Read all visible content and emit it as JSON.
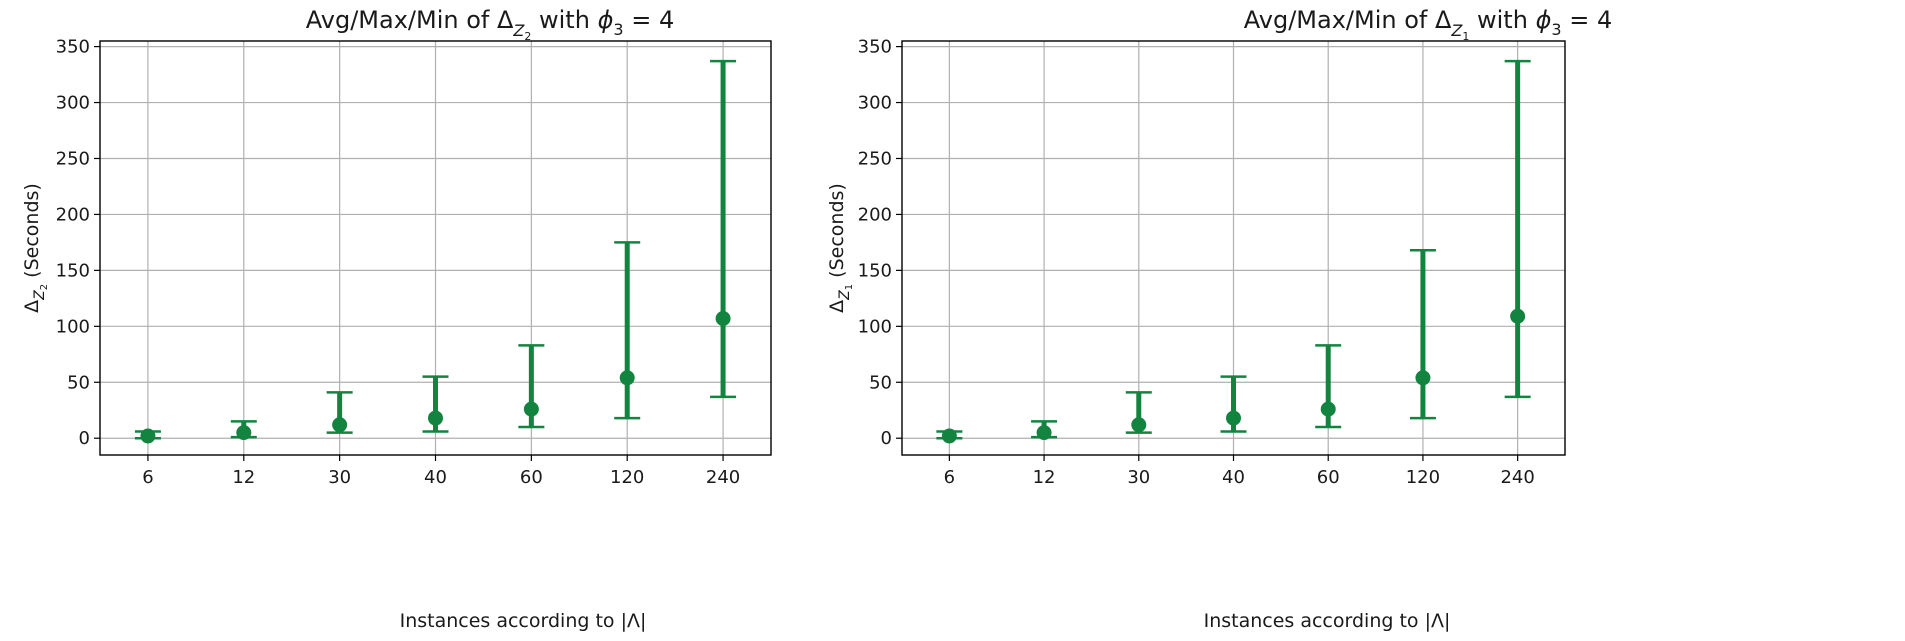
{
  "chart_data": [
    {
      "type": "errorbar",
      "title_prefix": "Avg/Max/Min of ",
      "title_symbol": "Δ",
      "title_sub": "Z",
      "title_subsub": "2",
      "title_mid": " with ",
      "title_phi": "ϕ",
      "title_phi_sub": "3",
      "title_suffix": " = 4",
      "xlabel": "Instances according to |Λ|",
      "ylabel_symbol": "Δ",
      "ylabel_sub": "Z",
      "ylabel_subsub": "2",
      "ylabel_suffix": " (Seconds)",
      "categories": [
        "6",
        "12",
        "30",
        "40",
        "60",
        "120",
        "240"
      ],
      "avg": [
        2,
        5,
        12,
        18,
        26,
        54,
        107
      ],
      "max": [
        6,
        15,
        41,
        55,
        83,
        175,
        337
      ],
      "min": [
        0,
        1,
        5,
        6,
        10,
        18,
        37
      ],
      "ylim": [
        -15,
        355
      ],
      "yticks": [
        "0",
        "50",
        "100",
        "150",
        "200",
        "250",
        "300",
        "350"
      ],
      "grid": true,
      "color": "#138440"
    },
    {
      "type": "errorbar",
      "title_prefix": "Avg/Max/Min of ",
      "title_symbol": "Δ",
      "title_sub": "Z",
      "title_subsub": "1",
      "title_mid": " with ",
      "title_phi": "ϕ",
      "title_phi_sub": "3",
      "title_suffix": " = 4",
      "xlabel": "Instances according to |Λ|",
      "ylabel_symbol": "Δ",
      "ylabel_sub": "Z",
      "ylabel_subsub": "1",
      "ylabel_suffix": " (Seconds)",
      "categories": [
        "6",
        "12",
        "30",
        "40",
        "60",
        "120",
        "240"
      ],
      "avg": [
        2,
        5,
        12,
        18,
        26,
        54,
        109
      ],
      "max": [
        6,
        15,
        41,
        55,
        83,
        168,
        337
      ],
      "min": [
        0,
        1,
        5,
        6,
        10,
        18,
        37
      ],
      "ylim": [
        -15,
        355
      ],
      "yticks": [
        "0",
        "50",
        "100",
        "150",
        "200",
        "250",
        "300",
        "350"
      ],
      "grid": true,
      "color": "#138440"
    }
  ]
}
